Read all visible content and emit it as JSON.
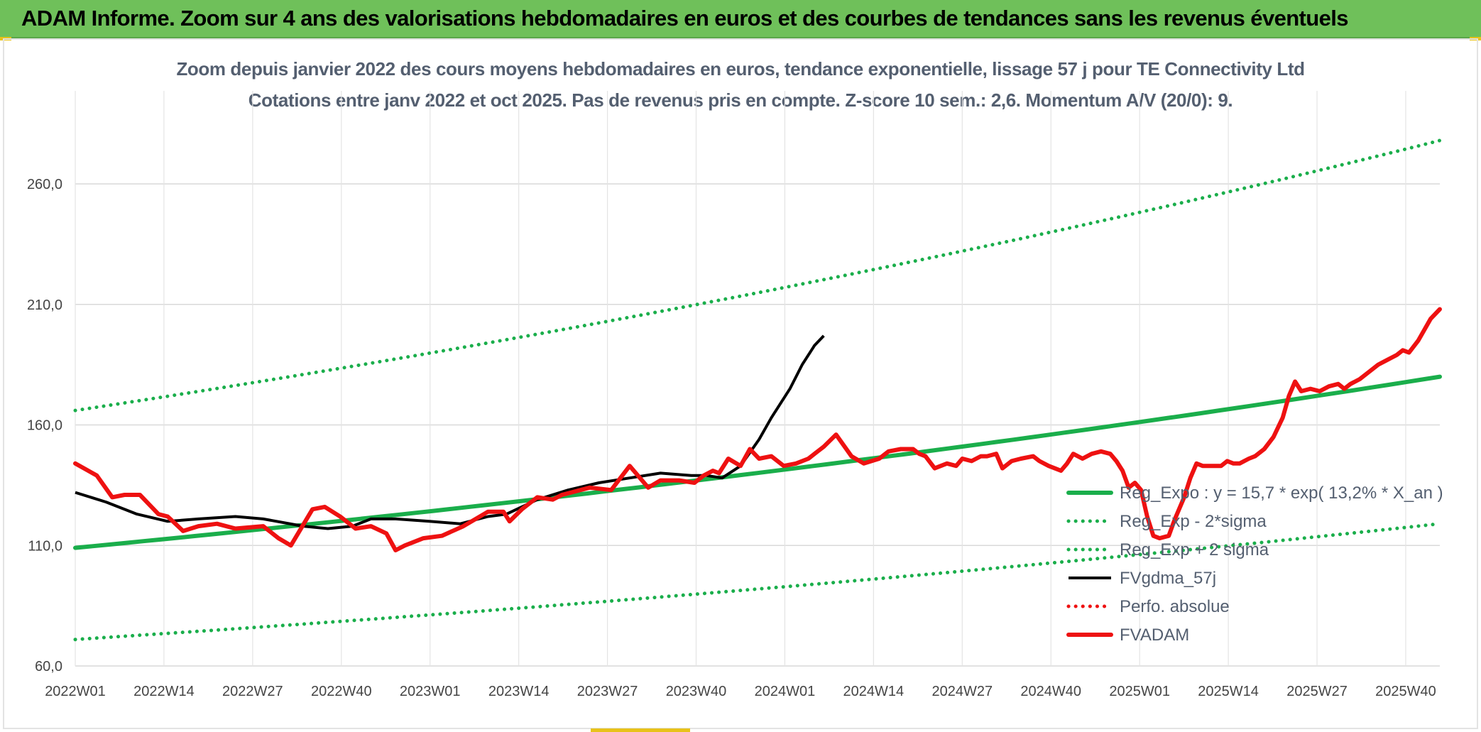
{
  "banner": {
    "title": "ADAM Informe. Zoom sur 4 ans des valorisations hebdomadaires en euros et des courbes de tendances sans les revenus éventuels"
  },
  "colors": {
    "banner_bg": "#6fc05a",
    "trend": "#1aae4b",
    "bands": "#1aae4b",
    "smooth": "#000000",
    "price": "#ee1111",
    "absolute": "#ee1111",
    "title_text": "#545f70",
    "grid": "#d9d9d9"
  },
  "chart_data": {
    "type": "line",
    "title": "Zoom depuis janvier 2022 des cours moyens hebdomadaires en euros, tendance exponentielle, lissage 57 j pour TE Connectivity Ltd",
    "subtitle": "Cotations entre janv 2022 et oct 2025. Pas de revenus pris en compte. Z-score 10 sem.: 2,6. Momentum A/V (20/0): 9.",
    "xlabel": "",
    "ylabel": "",
    "ylim": [
      60,
      270
    ],
    "grid": true,
    "legend_position": "right-middle",
    "y_ticks": [
      "60,0",
      "110,0",
      "160,0",
      "210,0",
      "260,0"
    ],
    "y_tick_values": [
      60,
      110,
      160,
      210,
      260
    ],
    "x_tick_labels": [
      "2022W01",
      "2022W14",
      "2022W27",
      "2022W40",
      "2023W01",
      "2023W14",
      "2023W27",
      "2023W40",
      "2024W01",
      "2024W14",
      "2024W27",
      "2024W40",
      "2025W01",
      "2025W14",
      "2025W27",
      "2025W40"
    ],
    "x_tick_indices": [
      0,
      13,
      26,
      39,
      52,
      65,
      78,
      91,
      104,
      117,
      130,
      143,
      156,
      169,
      182,
      195
    ],
    "x_count": 201,
    "series": [
      {
        "name": "Reg_Expo : y = 15,7 * exp( 13,2% *  X_an )",
        "style": "solid-thick",
        "color_key": "trend",
        "start": 109,
        "end": 180
      },
      {
        "name": "Reg_Exp - 2*sigma",
        "style": "dotted",
        "color_key": "bands",
        "start": 71,
        "end": 119
      },
      {
        "name": "Reg_Exp + 2 sigma",
        "style": "dotted",
        "color_key": "bands",
        "start": 166,
        "end": 278
      },
      {
        "name": "FVgdma_57j",
        "style": "solid",
        "color_key": "smooth",
        "anchors": [
          [
            0,
            132
          ],
          [
            10,
            128
          ],
          [
            20,
            123
          ],
          [
            30,
            120
          ],
          [
            40,
            121
          ],
          [
            52,
            122
          ],
          [
            61,
            121
          ],
          [
            74,
            118
          ],
          [
            82,
            117
          ],
          [
            90,
            118
          ],
          [
            96,
            121
          ],
          [
            104,
            121
          ],
          [
            115,
            120
          ],
          [
            125,
            119
          ],
          [
            134,
            122
          ],
          [
            140,
            123
          ],
          [
            150,
            129
          ],
          [
            160,
            133
          ],
          [
            170,
            136
          ],
          [
            180,
            138
          ],
          [
            190,
            140
          ],
          [
            200,
            139
          ],
          [
            205,
            139
          ],
          [
            210,
            138
          ],
          [
            216,
            143
          ],
          [
            222,
            154
          ],
          [
            226,
            163
          ],
          [
            232,
            175
          ],
          [
            236,
            185
          ],
          [
            240,
            193
          ],
          [
            243,
            197
          ]
        ]
      },
      {
        "name": "Perfo. absolue",
        "style": "dotted",
        "color_key": "absolute",
        "values": []
      },
      {
        "name": "FVADAM",
        "style": "solid-thick",
        "color_key": "price",
        "anchors": [
          [
            0,
            144
          ],
          [
            7,
            139
          ],
          [
            12,
            130
          ],
          [
            16,
            131
          ],
          [
            21,
            131
          ],
          [
            27,
            123
          ],
          [
            30,
            122
          ],
          [
            35,
            116
          ],
          [
            40,
            118
          ],
          [
            46,
            119
          ],
          [
            52,
            117
          ],
          [
            61,
            118
          ],
          [
            66,
            113
          ],
          [
            70,
            110
          ],
          [
            77,
            125
          ],
          [
            81,
            126
          ],
          [
            86,
            122
          ],
          [
            91,
            117
          ],
          [
            96,
            118
          ],
          [
            101,
            115
          ],
          [
            104,
            108
          ],
          [
            107,
            110
          ],
          [
            113,
            113
          ],
          [
            119,
            114
          ],
          [
            126,
            118
          ],
          [
            130,
            121
          ],
          [
            134,
            124
          ],
          [
            139,
            124
          ],
          [
            141,
            120
          ],
          [
            145,
            125
          ],
          [
            150,
            130
          ],
          [
            155,
            129
          ],
          [
            158,
            131
          ],
          [
            161,
            132
          ],
          [
            167,
            134
          ],
          [
            174,
            133
          ],
          [
            180,
            143
          ],
          [
            186,
            134
          ],
          [
            190,
            137
          ],
          [
            196,
            137
          ],
          [
            201,
            136
          ],
          [
            204,
            139
          ],
          [
            207,
            141
          ],
          [
            209,
            140
          ],
          [
            212,
            146
          ],
          [
            216,
            143
          ],
          [
            219,
            150
          ],
          [
            222,
            146
          ],
          [
            226,
            147
          ],
          [
            230,
            143
          ],
          [
            234,
            144
          ],
          [
            238,
            146
          ],
          [
            241,
            149
          ],
          [
            243,
            151
          ],
          [
            247,
            156
          ],
          [
            252,
            147
          ],
          [
            256,
            144
          ],
          [
            261,
            146
          ],
          [
            264,
            149
          ],
          [
            268,
            150
          ],
          [
            272,
            150
          ],
          [
            274,
            148
          ],
          [
            276,
            147
          ],
          [
            279,
            142
          ],
          [
            283,
            144
          ],
          [
            286,
            143
          ],
          [
            288,
            146
          ],
          [
            291,
            145
          ],
          [
            294,
            147
          ],
          [
            296,
            147
          ],
          [
            299,
            148
          ],
          [
            301,
            142
          ],
          [
            304,
            145
          ],
          [
            307,
            146
          ],
          [
            311,
            147
          ],
          [
            313,
            145
          ],
          [
            316,
            143
          ],
          [
            318,
            142
          ],
          [
            320,
            141
          ],
          [
            322,
            144
          ],
          [
            324,
            148
          ],
          [
            327,
            146
          ],
          [
            330,
            148
          ],
          [
            333,
            149
          ],
          [
            336,
            148
          ],
          [
            338,
            145
          ],
          [
            340,
            141
          ],
          [
            342,
            134
          ],
          [
            344,
            136
          ],
          [
            346,
            133
          ],
          [
            348,
            122
          ],
          [
            350,
            114
          ],
          [
            352,
            113
          ],
          [
            355,
            114
          ],
          [
            357,
            121
          ],
          [
            360,
            130
          ],
          [
            362,
            138
          ],
          [
            364,
            144
          ],
          [
            366,
            143
          ],
          [
            369,
            143
          ],
          [
            372,
            143
          ],
          [
            374,
            145
          ],
          [
            376,
            144
          ],
          [
            378,
            144
          ],
          [
            381,
            146
          ],
          [
            383,
            147
          ],
          [
            386,
            150
          ],
          [
            389,
            155
          ],
          [
            392,
            163
          ],
          [
            394,
            172
          ],
          [
            396,
            178
          ],
          [
            398,
            174
          ],
          [
            401,
            175
          ],
          [
            404,
            174
          ],
          [
            407,
            176
          ],
          [
            410,
            177
          ],
          [
            412,
            175
          ],
          [
            414,
            177
          ],
          [
            417,
            179
          ],
          [
            420,
            182
          ],
          [
            423,
            185
          ],
          [
            426,
            187
          ],
          [
            429,
            189
          ],
          [
            431,
            191
          ],
          [
            433,
            190
          ],
          [
            436,
            195
          ],
          [
            440,
            204
          ],
          [
            443,
            208
          ]
        ]
      }
    ]
  }
}
